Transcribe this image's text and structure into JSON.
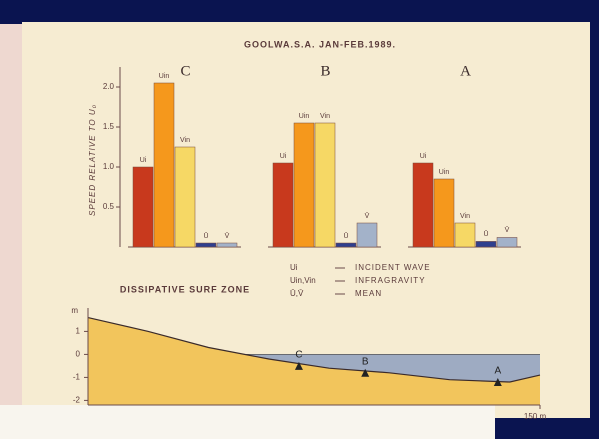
{
  "chart_data": [
    {
      "type": "bar",
      "title": "GOOLWA.S.A. JAN-FEB.1989.",
      "subtitle": "DISSIPATIVE SURF ZONE",
      "ylabel": "SPEED RELATIVE TO U₀",
      "categories": [
        "C",
        "B",
        "A"
      ],
      "series": [
        {
          "name": "Ui",
          "color": "#c8391d",
          "values": [
            1.0,
            1.05,
            1.05
          ]
        },
        {
          "name": "Uin",
          "color": "#f5981c",
          "values": [
            2.05,
            1.55,
            0.85
          ]
        },
        {
          "name": "Vin",
          "color": "#f6d865",
          "values": [
            1.25,
            1.55,
            0.3
          ]
        },
        {
          "name": "Ū",
          "color": "#2f3f8e",
          "values": [
            0.05,
            0.05,
            0.07
          ]
        },
        {
          "name": "V̄",
          "color": "#a3b2c9",
          "values": [
            0.05,
            0.3,
            0.12
          ]
        }
      ],
      "ylim": [
        0,
        2.25
      ],
      "yticks": [
        0.5,
        {
          "value": 1,
          "label": "1.0"
        },
        1.5,
        {
          "value": 2,
          "label": "2.0"
        }
      ],
      "key": [
        {
          "symbol": "Ui",
          "text": "INCIDENT WAVE"
        },
        {
          "symbol": "Uin,Vin",
          "text": "INFRAGRAVITY"
        },
        {
          "symbol": "Ū,V̄",
          "text": "MEAN"
        }
      ]
    },
    {
      "type": "area",
      "ylabel": "m",
      "x": [
        0,
        20,
        40,
        60,
        80,
        100,
        120,
        140,
        150
      ],
      "series": [
        {
          "color": "#f2c55c",
          "values": [
            1.6,
            1.0,
            0.3,
            -0.2,
            -0.6,
            -0.8,
            -1.1,
            -1.2,
            -0.9
          ]
        },
        {
          "color": "#9eabc2",
          "x": [
            45,
            150
          ],
          "values": [
            0,
            0
          ]
        }
      ],
      "stations": {
        "labels": [
          "C",
          "B",
          "A"
        ],
        "x": [
          70,
          92,
          136
        ],
        "y": [
          -0.5,
          -0.8,
          -1.2
        ]
      },
      "xlim": [
        0,
        150
      ],
      "xticks": [
        {
          "value": 150,
          "label": "150 m"
        }
      ],
      "ylim": [
        -2.2,
        1.8
      ],
      "yticks": [
        1,
        0,
        -1,
        -2
      ]
    }
  ]
}
